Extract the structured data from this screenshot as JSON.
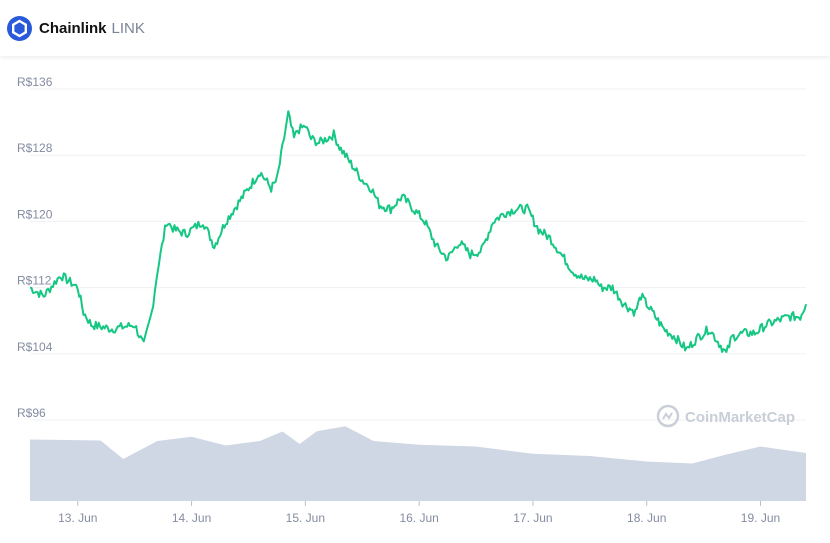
{
  "header": {
    "name": "Chainlink",
    "symbol": "LINK",
    "logo_icon": "chainlink-hexagon-icon",
    "brand_color": "#2a5ada"
  },
  "watermark": {
    "text": "CoinMarketCap",
    "icon": "coinmarketcap-logo-icon"
  },
  "colors": {
    "price_line": "#16c784",
    "volume_fill": "#cfd6e4",
    "grid": "#eef0f3",
    "tick_text": "#858ca2"
  },
  "chart_data": {
    "type": "line",
    "title": "",
    "xlabel": "",
    "ylabel": "",
    "y_ticks": [
      "R$96",
      "R$104",
      "R$112",
      "R$120",
      "R$128",
      "R$136"
    ],
    "y_tick_values": [
      96,
      104,
      112,
      120,
      128,
      136
    ],
    "ylim": [
      96,
      136
    ],
    "grid": true,
    "x_ticks": [
      "13. Jun",
      "14. Jun",
      "15. Jun",
      "16. Jun",
      "17. Jun",
      "18. Jun",
      "19. Jun"
    ],
    "x_tick_values": [
      13,
      14,
      15,
      16,
      17,
      18,
      19
    ],
    "xlim": [
      12.58,
      19.4
    ],
    "series": [
      {
        "role": "price",
        "x": [
          12.58,
          12.7,
          12.85,
          13.0,
          13.05,
          13.12,
          13.3,
          13.5,
          13.58,
          13.65,
          13.7,
          13.78,
          13.85,
          13.95,
          14.1,
          14.2,
          14.3,
          14.35,
          14.45,
          14.55,
          14.6,
          14.7,
          14.75,
          14.85,
          14.9,
          14.93,
          15.0,
          15.05,
          15.12,
          15.25,
          15.3,
          15.4,
          15.5,
          15.58,
          15.65,
          15.75,
          15.85,
          15.95,
          16.05,
          16.15,
          16.25,
          16.35,
          16.45,
          16.55,
          16.65,
          16.75,
          16.85,
          16.95,
          17.05,
          17.15,
          17.25,
          17.3,
          17.35,
          17.45,
          17.55,
          17.6,
          17.7,
          17.8,
          17.9,
          17.95,
          18.05,
          18.15,
          18.25,
          18.35,
          18.45,
          18.55,
          18.65,
          18.7,
          18.75,
          18.85,
          18.95,
          19.0,
          19.05,
          19.15,
          19.25,
          19.35,
          19.4
        ],
        "values": [
          112,
          111,
          113.5,
          112,
          109,
          107.5,
          107,
          107.5,
          105,
          109,
          114,
          120,
          119,
          118.5,
          120,
          117,
          120,
          121,
          123,
          125,
          126,
          124,
          125,
          133,
          130,
          131,
          131.5,
          130,
          129.5,
          130.5,
          129,
          127,
          125,
          124,
          122,
          121.5,
          123,
          121.5,
          120,
          117,
          115.5,
          117.5,
          116,
          116.5,
          120,
          121,
          121.5,
          121.5,
          119,
          118,
          116,
          115,
          114,
          113,
          113,
          112,
          112,
          110,
          109,
          111,
          109,
          107,
          106,
          104.5,
          106,
          107,
          105,
          104,
          106,
          106.5,
          106.5,
          107,
          107.5,
          108,
          108.5,
          108.5,
          110
        ]
      },
      {
        "role": "volume",
        "x": [
          12.58,
          13.2,
          13.4,
          13.7,
          14.0,
          14.3,
          14.6,
          14.8,
          14.95,
          15.1,
          15.35,
          15.6,
          16.0,
          16.5,
          17.0,
          17.5,
          18.0,
          18.4,
          18.7,
          19.0,
          19.4
        ],
        "values": [
          0.82,
          0.78,
          0.58,
          0.8,
          0.83,
          0.76,
          0.8,
          0.9,
          0.78,
          0.93,
          0.97,
          0.82,
          0.75,
          0.7,
          0.65,
          0.6,
          0.5,
          0.52,
          0.62,
          0.7,
          0.66
        ]
      }
    ]
  }
}
